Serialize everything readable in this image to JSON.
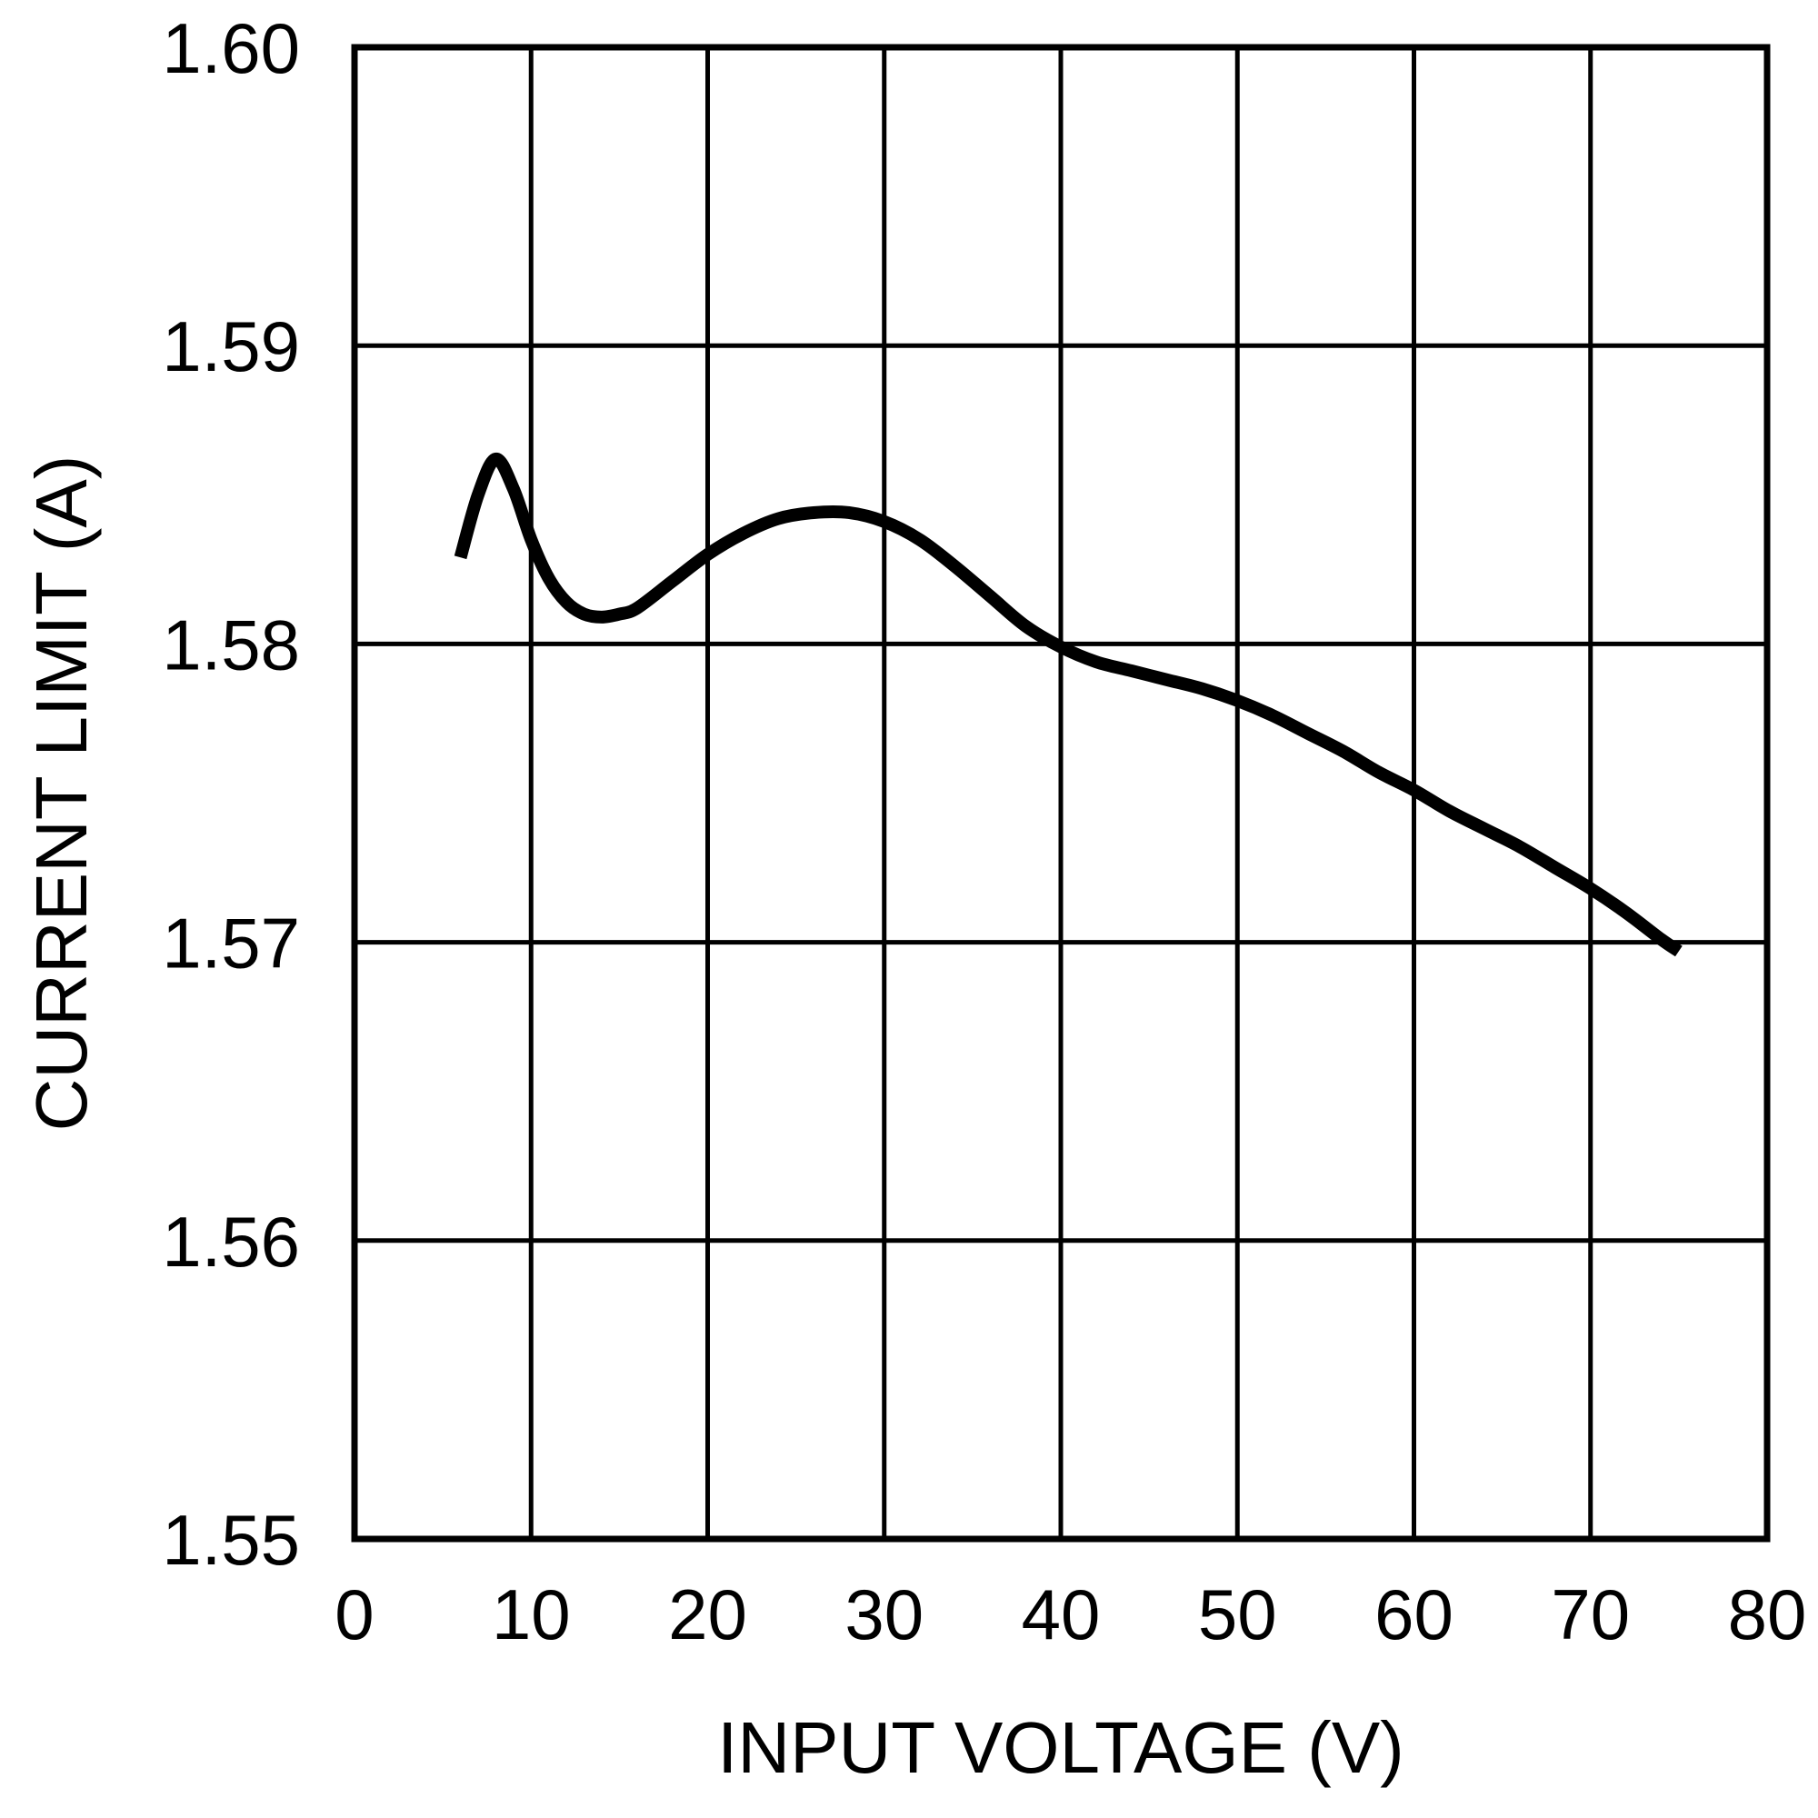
{
  "chart_data": {
    "type": "line",
    "title": "",
    "xlabel": "INPUT VOLTAGE (V)",
    "ylabel": "CURRENT LIMIT (A)",
    "xlim": [
      0,
      80
    ],
    "ylim": [
      1.55,
      1.6
    ],
    "xticks": [
      "0",
      "10",
      "20",
      "30",
      "40",
      "50",
      "60",
      "70",
      "80"
    ],
    "yticks": [
      "1.55",
      "1.56",
      "1.57",
      "1.58",
      "1.59",
      "1.60"
    ],
    "grid": true,
    "legend": null,
    "series": [
      {
        "name": "Current Limit",
        "color": "#000000",
        "x": [
          6,
          7,
          8,
          9,
          10,
          11,
          12,
          13,
          14,
          15,
          16,
          18,
          20,
          22,
          24,
          26,
          28,
          30,
          32,
          34,
          36,
          38,
          40,
          42,
          44,
          46,
          48,
          50,
          52,
          54,
          56,
          58,
          60,
          62,
          64,
          66,
          68,
          70,
          72,
          74,
          75
        ],
        "y": [
          1.5829,
          1.585,
          1.5862,
          1.5852,
          1.5835,
          1.5822,
          1.5814,
          1.581,
          1.5809,
          1.581,
          1.5812,
          1.5821,
          1.583,
          1.5837,
          1.5842,
          1.5844,
          1.5844,
          1.5841,
          1.5835,
          1.5826,
          1.5816,
          1.5806,
          1.5799,
          1.5794,
          1.5791,
          1.5788,
          1.5785,
          1.5781,
          1.5776,
          1.577,
          1.5764,
          1.5757,
          1.5751,
          1.5744,
          1.5738,
          1.5732,
          1.5725,
          1.5718,
          1.571,
          1.5701,
          1.5697
        ]
      }
    ]
  }
}
